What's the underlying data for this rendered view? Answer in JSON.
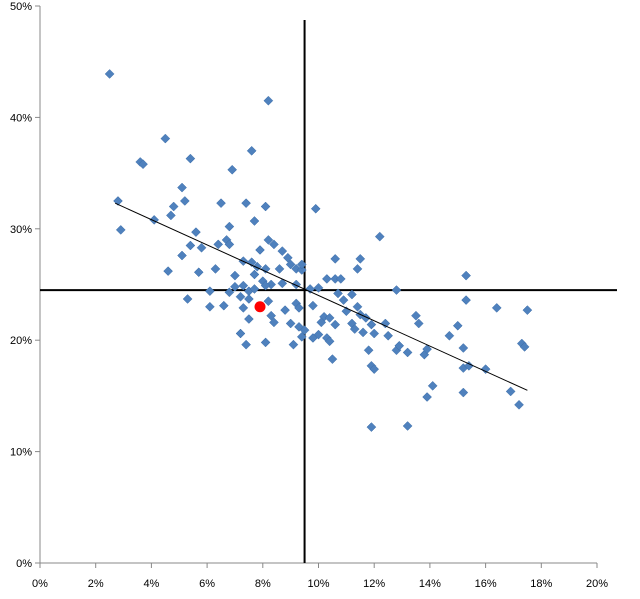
{
  "chart_data": {
    "type": "scatter",
    "title": "",
    "xlabel": "",
    "ylabel": "",
    "xlim": [
      0,
      20
    ],
    "ylim": [
      0,
      50
    ],
    "x_ticks": [
      0,
      2,
      4,
      6,
      8,
      10,
      12,
      14,
      16,
      18,
      20
    ],
    "x_tick_labels": [
      "0%",
      "2%",
      "4%",
      "6%",
      "8%",
      "10%",
      "12%",
      "14%",
      "16%",
      "18%",
      "20%"
    ],
    "y_ticks": [
      0,
      10,
      20,
      30,
      40,
      50
    ],
    "y_tick_labels": [
      "0%",
      "10%",
      "20%",
      "30%",
      "40%",
      "50%"
    ],
    "grid": false,
    "colors": {
      "points": "#4f81bd",
      "highlight": "#ff0000",
      "lines": "#000000"
    },
    "reference_lines": {
      "x": 9.5,
      "y": 24.5
    },
    "trendline": {
      "x": [
        2.7,
        17.5
      ],
      "y": [
        32.3,
        15.5
      ]
    },
    "highlight": {
      "x": 7.9,
      "y": 23.0
    },
    "points": [
      [
        2.5,
        43.9
      ],
      [
        8.2,
        41.5
      ],
      [
        4.5,
        38.1
      ],
      [
        7.6,
        37.0
      ],
      [
        3.6,
        36.0
      ],
      [
        3.7,
        35.8
      ],
      [
        5.4,
        36.3
      ],
      [
        6.9,
        35.3
      ],
      [
        5.1,
        33.7
      ],
      [
        2.8,
        32.5
      ],
      [
        4.8,
        32.0
      ],
      [
        5.2,
        32.5
      ],
      [
        6.5,
        32.3
      ],
      [
        7.4,
        32.3
      ],
      [
        8.1,
        32.0
      ],
      [
        9.9,
        31.8
      ],
      [
        4.1,
        30.8
      ],
      [
        4.7,
        31.2
      ],
      [
        7.7,
        30.7
      ],
      [
        2.9,
        29.9
      ],
      [
        5.6,
        29.7
      ],
      [
        6.8,
        30.2
      ],
      [
        12.2,
        29.3
      ],
      [
        5.4,
        28.5
      ],
      [
        5.8,
        28.3
      ],
      [
        6.4,
        28.6
      ],
      [
        6.7,
        29.0
      ],
      [
        6.8,
        28.6
      ],
      [
        7.9,
        28.1
      ],
      [
        8.2,
        29.0
      ],
      [
        8.4,
        28.6
      ],
      [
        8.7,
        28.0
      ],
      [
        8.9,
        27.4
      ],
      [
        5.1,
        27.6
      ],
      [
        7.3,
        27.1
      ],
      [
        7.6,
        27.0
      ],
      [
        7.8,
        26.6
      ],
      [
        8.1,
        26.4
      ],
      [
        8.6,
        26.4
      ],
      [
        9.0,
        26.8
      ],
      [
        9.2,
        26.4
      ],
      [
        9.4,
        26.3
      ],
      [
        9.4,
        26.8
      ],
      [
        4.6,
        26.2
      ],
      [
        5.7,
        26.1
      ],
      [
        6.3,
        26.4
      ],
      [
        7.0,
        25.8
      ],
      [
        7.7,
        25.9
      ],
      [
        8.0,
        25.3
      ],
      [
        10.6,
        27.3
      ],
      [
        11.5,
        27.3
      ],
      [
        11.4,
        26.4
      ],
      [
        10.6,
        25.5
      ],
      [
        10.3,
        25.5
      ],
      [
        10.8,
        25.5
      ],
      [
        15.3,
        25.8
      ],
      [
        8.3,
        25.0
      ],
      [
        8.7,
        25.1
      ],
      [
        9.2,
        25.0
      ],
      [
        6.1,
        24.4
      ],
      [
        6.8,
        24.3
      ],
      [
        7.0,
        24.8
      ],
      [
        7.3,
        24.9
      ],
      [
        7.5,
        24.4
      ],
      [
        7.7,
        24.6
      ],
      [
        8.1,
        24.9
      ],
      [
        9.7,
        24.6
      ],
      [
        10.0,
        24.7
      ],
      [
        10.7,
        24.2
      ],
      [
        12.8,
        24.5
      ],
      [
        5.3,
        23.7
      ],
      [
        6.6,
        23.1
      ],
      [
        7.2,
        23.9
      ],
      [
        7.5,
        23.7
      ],
      [
        8.2,
        23.5
      ],
      [
        9.2,
        23.3
      ],
      [
        9.8,
        23.1
      ],
      [
        10.9,
        23.6
      ],
      [
        11.2,
        24.1
      ],
      [
        11.4,
        23.0
      ],
      [
        15.3,
        23.6
      ],
      [
        6.1,
        23.0
      ],
      [
        7.3,
        22.9
      ],
      [
        8.3,
        22.2
      ],
      [
        8.8,
        22.7
      ],
      [
        9.3,
        22.9
      ],
      [
        10.2,
        22.1
      ],
      [
        10.4,
        22.0
      ],
      [
        11.0,
        22.6
      ],
      [
        11.5,
        22.3
      ],
      [
        11.7,
        22.0
      ],
      [
        12.4,
        21.5
      ],
      [
        13.5,
        22.2
      ],
      [
        16.4,
        22.9
      ],
      [
        17.5,
        22.7
      ],
      [
        7.5,
        21.9
      ],
      [
        8.4,
        21.6
      ],
      [
        9.0,
        21.5
      ],
      [
        9.3,
        21.2
      ],
      [
        10.1,
        21.6
      ],
      [
        10.6,
        21.4
      ],
      [
        11.2,
        21.5
      ],
      [
        11.9,
        21.4
      ],
      [
        13.6,
        21.5
      ],
      [
        15.0,
        21.3
      ],
      [
        7.2,
        20.6
      ],
      [
        9.5,
        20.9
      ],
      [
        10.0,
        20.5
      ],
      [
        10.3,
        20.2
      ],
      [
        11.3,
        21.0
      ],
      [
        11.6,
        20.7
      ],
      [
        12.0,
        20.6
      ],
      [
        12.5,
        20.4
      ],
      [
        14.7,
        20.4
      ],
      [
        7.4,
        19.6
      ],
      [
        8.1,
        19.8
      ],
      [
        9.1,
        19.6
      ],
      [
        9.4,
        20.3
      ],
      [
        9.8,
        20.2
      ],
      [
        10.4,
        19.9
      ],
      [
        11.8,
        19.1
      ],
      [
        12.8,
        19.1
      ],
      [
        12.9,
        19.5
      ],
      [
        13.2,
        18.9
      ],
      [
        13.8,
        18.7
      ],
      [
        13.9,
        19.2
      ],
      [
        15.2,
        19.3
      ],
      [
        17.3,
        19.7
      ],
      [
        17.4,
        19.4
      ],
      [
        10.5,
        18.3
      ],
      [
        11.9,
        17.7
      ],
      [
        12.0,
        17.4
      ],
      [
        15.2,
        17.5
      ],
      [
        15.4,
        17.7
      ],
      [
        16.0,
        17.4
      ],
      [
        14.1,
        15.9
      ],
      [
        13.9,
        14.9
      ],
      [
        15.2,
        15.3
      ],
      [
        16.9,
        15.4
      ],
      [
        17.2,
        14.2
      ],
      [
        11.9,
        12.2
      ],
      [
        13.2,
        12.3
      ]
    ]
  }
}
